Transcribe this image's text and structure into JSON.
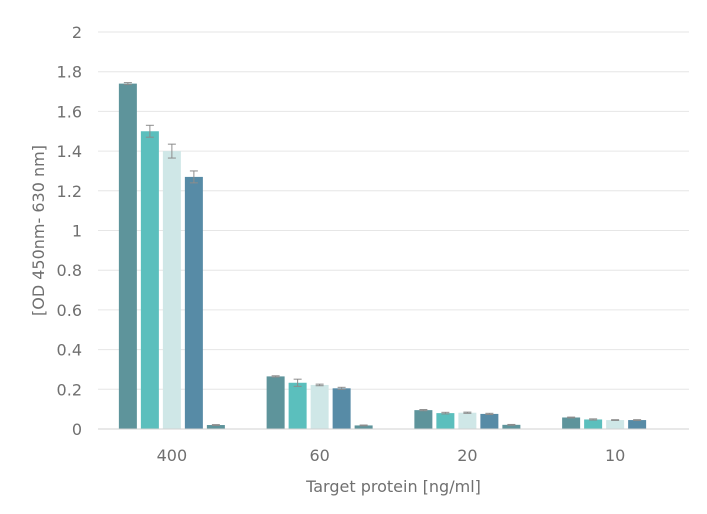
{
  "chart_data": {
    "type": "bar",
    "title": "",
    "xlabel": "Target protein [ng/ml]",
    "ylabel": "[OD 450nm- 630 nm]",
    "ylim": [
      0,
      2
    ],
    "yticks": [
      "0",
      "0.2",
      "0.4",
      "0.6",
      "0.8",
      "1",
      "1.2",
      "1.4",
      "1.6",
      "1.8",
      "2"
    ],
    "grid": true,
    "legend": "none",
    "categories": [
      "400",
      "60",
      "20",
      "10"
    ],
    "series": [
      {
        "color": "#5e949b",
        "values": [
          1.74,
          0.265,
          0.095,
          0.058
        ],
        "errors": [
          0.005,
          0.003,
          0.003,
          0.002
        ]
      },
      {
        "color": "#5bbfbd",
        "values": [
          1.5,
          0.233,
          0.08,
          0.048
        ],
        "errors": [
          0.03,
          0.018,
          0.004,
          0.003
        ]
      },
      {
        "color": "#cfe7e7",
        "values": [
          1.4,
          0.222,
          0.082,
          0.045
        ],
        "errors": [
          0.035,
          0.004,
          0.003,
          0.002
        ]
      },
      {
        "color": "#578ba6",
        "values": [
          1.27,
          0.205,
          0.076,
          0.045
        ],
        "errors": [
          0.03,
          0.005,
          0.003,
          0.002
        ]
      },
      {
        "color": "#5e949b",
        "values": [
          0.02,
          0.018,
          0.021,
          0
        ],
        "errors": [
          0.002,
          0.002,
          0.002,
          0
        ]
      }
    ]
  }
}
